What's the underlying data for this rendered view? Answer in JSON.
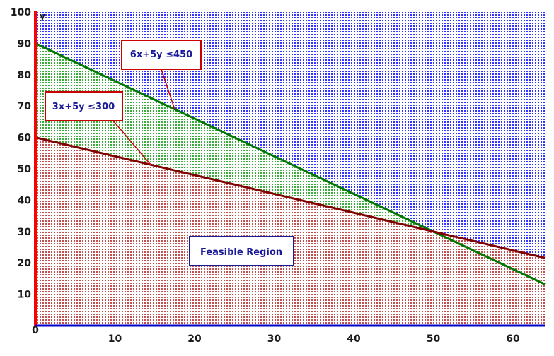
{
  "chart_data": {
    "type": "area",
    "title": "",
    "xlabel": "",
    "ylabel": "y",
    "origin_label": "0",
    "xlim": [
      0,
      64
    ],
    "ylim": [
      0,
      100
    ],
    "x_ticks": [
      10,
      20,
      30,
      40,
      50,
      60
    ],
    "y_ticks": [
      10,
      20,
      30,
      40,
      50,
      60,
      70,
      80,
      90,
      100
    ],
    "grid": true,
    "series": [
      {
        "name": "3x+5y ≤300",
        "x": [
          0,
          64
        ],
        "y": [
          60,
          21.6
        ],
        "color": "#800000",
        "fill": "#cc6666"
      },
      {
        "name": "6x+5y ≤450",
        "x": [
          0,
          64
        ],
        "y": [
          90,
          13.2
        ],
        "color": "#007700",
        "fill": "#44bb44"
      }
    ],
    "background_color": "#3333ff",
    "annotations": [
      {
        "id": "c1",
        "text": "6x+5y ≤450",
        "points_to": [
          17.5,
          69
        ]
      },
      {
        "id": "c2",
        "text": "3x+5y ≤300",
        "points_to": [
          14.5,
          51.3
        ]
      },
      {
        "id": "feasible",
        "text": "Feasible Region"
      }
    ]
  }
}
